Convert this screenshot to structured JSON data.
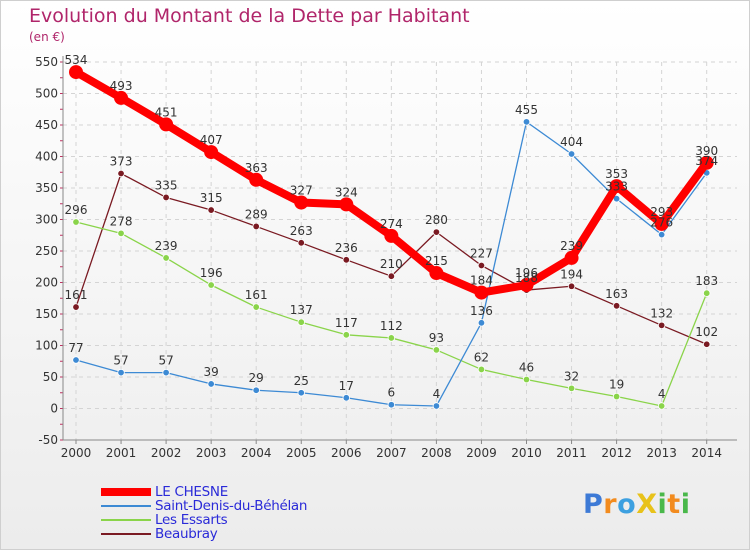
{
  "title": "Evolution du Montant de la Dette par Habitant",
  "unit": "(en €)",
  "logo": {
    "text": "ProXiti",
    "letters": [
      {
        "ch": "P",
        "color": "#3d7ad6"
      },
      {
        "ch": "r",
        "color": "#f28b1e"
      },
      {
        "ch": "o",
        "color": "#3da0e0"
      },
      {
        "ch": "X",
        "color": "#e8c21a"
      },
      {
        "ch": "i",
        "color": "#49b84a"
      },
      {
        "ch": "t",
        "color": "#f28b1e"
      },
      {
        "ch": "i",
        "color": "#49b84a"
      }
    ]
  },
  "chart_data": {
    "type": "line",
    "title": "Evolution du Montant de la Dette par Habitant",
    "ylabel": "(en €)",
    "x": [
      "2000",
      "2001",
      "2002",
      "2003",
      "2004",
      "2005",
      "2006",
      "2007",
      "2008",
      "2009",
      "2010",
      "2011",
      "2012",
      "2013",
      "2014"
    ],
    "ylim": [
      -50,
      550
    ],
    "yticks": [
      -50,
      0,
      50,
      100,
      150,
      200,
      250,
      300,
      350,
      400,
      450,
      500,
      550
    ],
    "grid": true,
    "legend_position": "bottom-left",
    "series": [
      {
        "name": "LE CHESNE",
        "color": "#ff0000",
        "values": [
          534,
          493,
          451,
          407,
          363,
          327,
          324,
          274,
          215,
          184,
          196,
          239,
          353,
          293,
          390
        ],
        "labels": [
          "534",
          "493",
          "451",
          "407",
          "363",
          "327",
          "324",
          "274",
          "215",
          "184",
          "196",
          "239",
          "353",
          "293",
          "390"
        ]
      },
      {
        "name": "Saint-Denis-du-Béhélan",
        "color": "#3d8ad4",
        "values": [
          77,
          57,
          57,
          39,
          29,
          25,
          17,
          6,
          4,
          136,
          455,
          404,
          333,
          276,
          374
        ],
        "labels": [
          "77",
          "57",
          "57",
          "39",
          "29",
          "25",
          "17",
          "6",
          "4",
          "136",
          "455",
          "404",
          "333",
          "276",
          "374"
        ]
      },
      {
        "name": "Les Essarts",
        "color": "#8ad44a",
        "values": [
          296,
          278,
          239,
          196,
          161,
          137,
          117,
          112,
          93,
          62,
          46,
          32,
          19,
          4,
          183
        ],
        "labels": [
          "296",
          "278",
          "239",
          "196",
          "161",
          "137",
          "117",
          "112",
          "93",
          "62",
          "46",
          "32",
          "19",
          "4",
          "183"
        ]
      },
      {
        "name": "Beaubray",
        "color": "#7a1a22",
        "values": [
          161,
          373,
          335,
          315,
          289,
          263,
          236,
          210,
          280,
          227,
          188,
          194,
          163,
          132,
          102
        ],
        "labels": [
          "161",
          "373",
          "335",
          "315",
          "289",
          "263",
          "236",
          "210",
          "280",
          "227",
          "188",
          "194",
          "163",
          "132",
          "102"
        ]
      }
    ]
  }
}
